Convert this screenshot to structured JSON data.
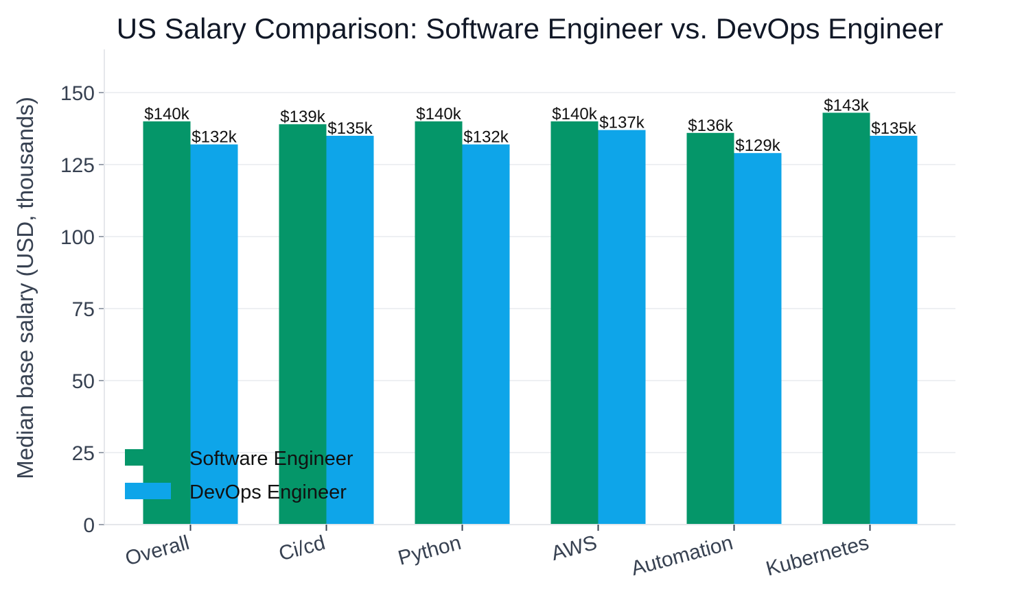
{
  "chart_data": {
    "type": "bar",
    "title": "US Salary Comparison: Software Engineer vs. DevOps Engineer",
    "xlabel": "",
    "ylabel": "Median base salary (USD, thousands)",
    "categories": [
      "Overall",
      "Ci/cd",
      "Python",
      "AWS",
      "Automation",
      "Kubernetes"
    ],
    "series": [
      {
        "name": "Software Engineer",
        "color": "#059669",
        "values": [
          140,
          139,
          140,
          140,
          136,
          143
        ],
        "labels": [
          "$140k",
          "$139k",
          "$140k",
          "$140k",
          "$136k",
          "$143k"
        ]
      },
      {
        "name": "DevOps Engineer",
        "color": "#0EA5E9",
        "values": [
          132,
          135,
          132,
          137,
          129,
          135
        ],
        "labels": [
          "$132k",
          "$135k",
          "$132k",
          "$137k",
          "$129k",
          "$135k"
        ]
      }
    ],
    "ylim": [
      0,
      165
    ],
    "yticks": [
      0,
      25,
      50,
      75,
      100,
      125,
      150
    ],
    "grid": true,
    "legend_position": "lower-left"
  }
}
